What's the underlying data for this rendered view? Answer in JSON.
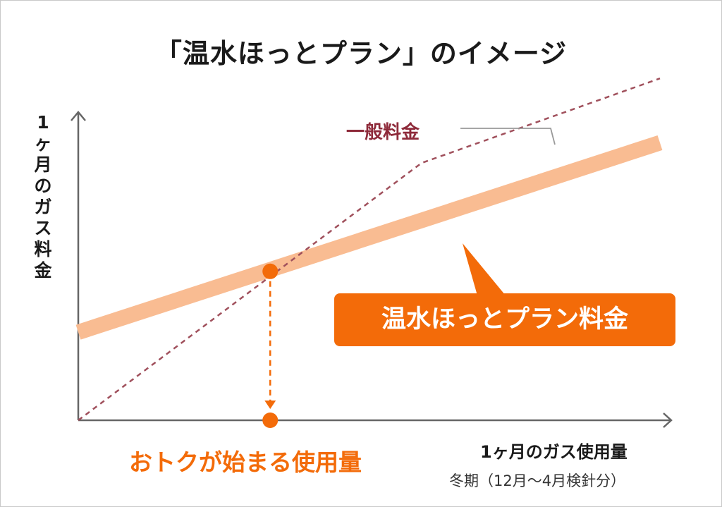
{
  "title": "「温水ほっとプラン」のイメージ",
  "colors": {
    "general": "#a0505c",
    "plan": "#f9bc92",
    "accent": "#f36b09",
    "axis": "#666666"
  },
  "chart_data": {
    "type": "line",
    "ylabel": "1ヶ月のガス料金",
    "xlabel": "1ヶ月のガス使用量",
    "xlabel_sub": "冬期（12月～4月検針分）",
    "xlim": [
      0,
      100
    ],
    "ylim": [
      0,
      100
    ],
    "grid": false,
    "series": [
      {
        "name": "一般料金",
        "style": "dashed",
        "x": [
          0,
          59,
          100
        ],
        "y": [
          0,
          76,
          101
        ]
      },
      {
        "name": "温水ほっとプラン料金",
        "style": "thick",
        "x": [
          0,
          100
        ],
        "y": [
          26,
          82
        ]
      }
    ],
    "annotations": [
      {
        "label": "おトクが始まる使用量",
        "x": 33,
        "y": 44,
        "target_y": 0
      }
    ]
  }
}
